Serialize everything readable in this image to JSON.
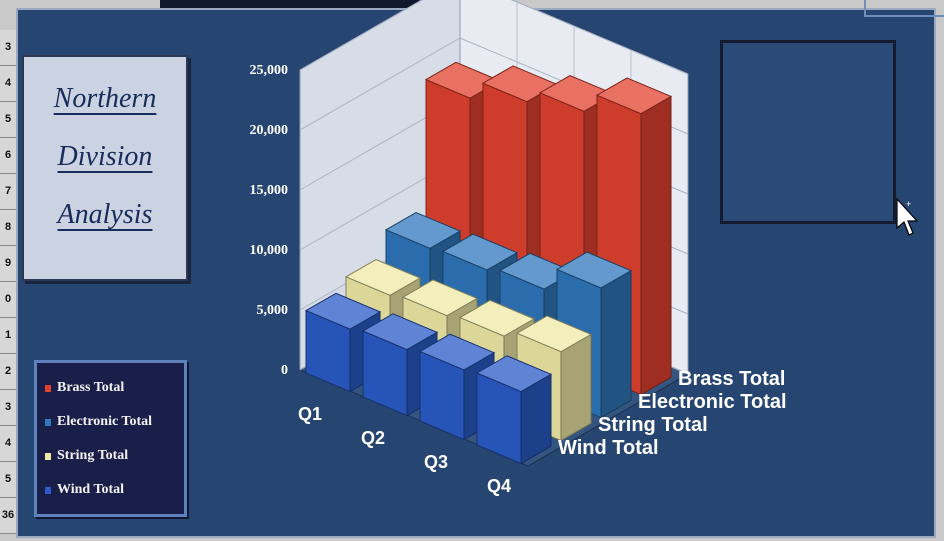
{
  "title_card": {
    "line1": "Northern",
    "line2": "Division",
    "line3": "Analysis"
  },
  "row_numbers": [
    "3",
    "4",
    "5",
    "6",
    "7",
    "8",
    "9",
    "0",
    "1",
    "2",
    "3",
    "4",
    "5",
    "36"
  ],
  "legend": {
    "items": [
      {
        "label": "Brass Total",
        "color": "#e0412f"
      },
      {
        "label": "Electronic Total",
        "color": "#2f77bb"
      },
      {
        "label": "String Total",
        "color": "#efe9a6"
      },
      {
        "label": "Wind Total",
        "color": "#2a5bc7"
      }
    ]
  },
  "colors": {
    "background": "#264570",
    "wall": "#dfe3ea",
    "floor_edge": "#e9edf4"
  },
  "chart_data": {
    "type": "bar",
    "subtype": "3d-column",
    "categories": [
      "Q1",
      "Q2",
      "Q3",
      "Q4"
    ],
    "series": [
      {
        "name": "Wind Total",
        "values": [
          5200,
          5500,
          5800,
          6000
        ]
      },
      {
        "name": "String Total",
        "values": [
          6100,
          6400,
          6700,
          7400
        ]
      },
      {
        "name": "Electronic Total",
        "values": [
          8100,
          8300,
          8700,
          10800
        ]
      },
      {
        "name": "Brass Total",
        "values": [
          18700,
          20400,
          21600,
          23400
        ]
      }
    ],
    "yticks": [
      "0",
      "5,000",
      "10,000",
      "15,000",
      "20,000",
      "25,000"
    ],
    "ylim": [
      0,
      25000
    ],
    "grid": true,
    "legend_position": "bottom-left"
  }
}
